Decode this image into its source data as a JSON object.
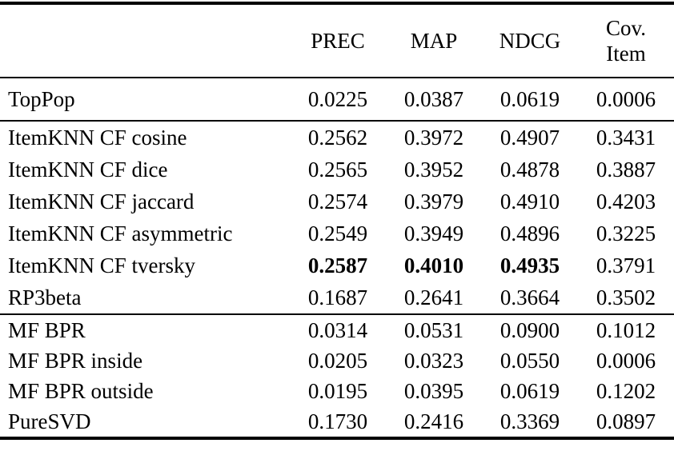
{
  "table": {
    "header": {
      "label": "",
      "prec": "PREC",
      "map": "MAP",
      "ndcg": "NDCG",
      "cov_line1": "Cov.",
      "cov_line2": "Item"
    },
    "groups": [
      {
        "rows": [
          {
            "label": "TopPop",
            "prec": "0.0225",
            "map": "0.0387",
            "ndcg": "0.0619",
            "cov": "0.0006",
            "bold": {
              "prec": false,
              "map": false,
              "ndcg": false,
              "cov": false
            }
          }
        ]
      },
      {
        "rows": [
          {
            "label": "ItemKNN CF cosine",
            "prec": "0.2562",
            "map": "0.3972",
            "ndcg": "0.4907",
            "cov": "0.3431",
            "bold": {
              "prec": false,
              "map": false,
              "ndcg": false,
              "cov": false
            }
          },
          {
            "label": "ItemKNN CF dice",
            "prec": "0.2565",
            "map": "0.3952",
            "ndcg": "0.4878",
            "cov": "0.3887",
            "bold": {
              "prec": false,
              "map": false,
              "ndcg": false,
              "cov": false
            }
          },
          {
            "label": "ItemKNN CF jaccard",
            "prec": "0.2574",
            "map": "0.3979",
            "ndcg": "0.4910",
            "cov": "0.4203",
            "bold": {
              "prec": false,
              "map": false,
              "ndcg": false,
              "cov": false
            }
          },
          {
            "label": "ItemKNN CF asymmetric",
            "prec": "0.2549",
            "map": "0.3949",
            "ndcg": "0.4896",
            "cov": "0.3225",
            "bold": {
              "prec": false,
              "map": false,
              "ndcg": false,
              "cov": false
            }
          },
          {
            "label": "ItemKNN CF tversky",
            "prec": "0.2587",
            "map": "0.4010",
            "ndcg": "0.4935",
            "cov": "0.3791",
            "bold": {
              "prec": true,
              "map": true,
              "ndcg": true,
              "cov": false
            }
          },
          {
            "label": "RP3beta",
            "prec": "0.1687",
            "map": "0.2641",
            "ndcg": "0.3664",
            "cov": "0.3502",
            "bold": {
              "prec": false,
              "map": false,
              "ndcg": false,
              "cov": false
            }
          }
        ]
      },
      {
        "rows": [
          {
            "label": "MF BPR",
            "prec": "0.0314",
            "map": "0.0531",
            "ndcg": "0.0900",
            "cov": "0.1012",
            "bold": {
              "prec": false,
              "map": false,
              "ndcg": false,
              "cov": false
            }
          },
          {
            "label": "MF BPR inside",
            "prec": "0.0205",
            "map": "0.0323",
            "ndcg": "0.0550",
            "cov": "0.0006",
            "bold": {
              "prec": false,
              "map": false,
              "ndcg": false,
              "cov": false
            }
          },
          {
            "label": "MF BPR outside",
            "prec": "0.0195",
            "map": "0.0395",
            "ndcg": "0.0619",
            "cov": "0.1202",
            "bold": {
              "prec": false,
              "map": false,
              "ndcg": false,
              "cov": false
            }
          },
          {
            "label": "PureSVD",
            "prec": "0.1730",
            "map": "0.2416",
            "ndcg": "0.3369",
            "cov": "0.0897",
            "bold": {
              "prec": false,
              "map": false,
              "ndcg": false,
              "cov": false
            }
          }
        ]
      }
    ]
  }
}
